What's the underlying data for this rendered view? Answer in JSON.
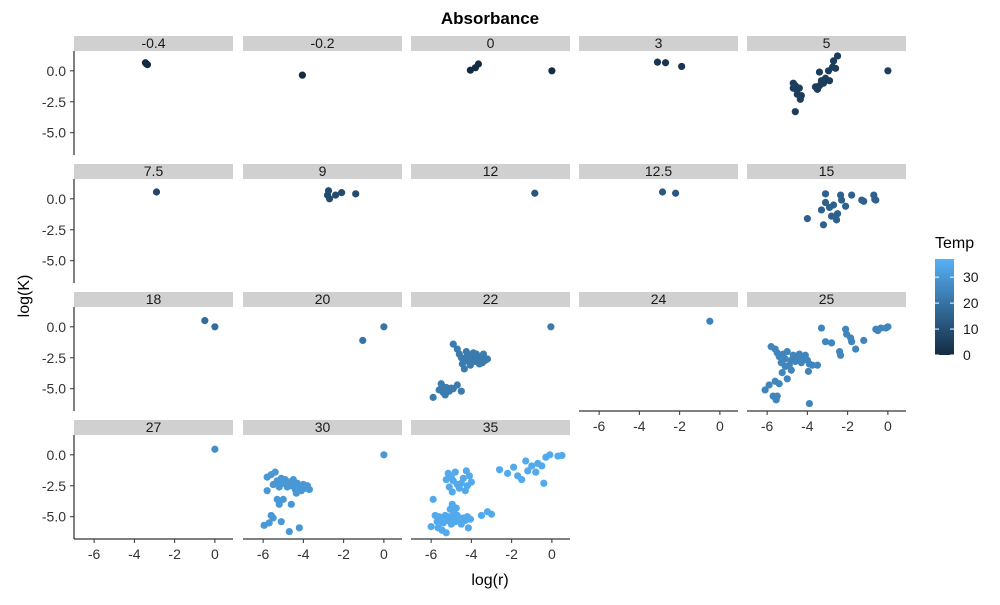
{
  "chart_data": {
    "type": "scatter",
    "faceted": true,
    "title": "Absorbance",
    "xlabel": "log(r)",
    "ylabel": "log(K)",
    "xlim": [
      -7.0,
      0.9
    ],
    "ylim": [
      -6.8,
      1.6
    ],
    "x_ticks": [
      -6,
      -4,
      -2,
      0
    ],
    "x_tick_labels": [
      "-6",
      "-4",
      "-2",
      "0"
    ],
    "y_ticks": [
      0,
      -2.5,
      -5
    ],
    "y_tick_labels": [
      "0.0",
      "-2.5",
      "-5.0"
    ],
    "grid": false,
    "legend": {
      "title": "Temp",
      "placement": "right",
      "min": 0,
      "max": 37,
      "ticks": [
        0,
        10,
        20,
        30
      ],
      "tick_labels": [
        "0",
        "10",
        "20",
        "30"
      ],
      "color_low": "#132B43",
      "color_high": "#56B1F7"
    },
    "facets": [
      {
        "label": "-0.4",
        "temp": -0.4,
        "points": [
          [
            -3.45,
            0.65
          ],
          [
            -3.4,
            0.55
          ],
          [
            -3.35,
            0.5
          ]
        ]
      },
      {
        "label": "-0.2",
        "temp": -0.2,
        "points": [
          [
            -4.05,
            -0.35
          ]
        ]
      },
      {
        "label": "0",
        "temp": 0,
        "points": [
          [
            -4.05,
            0.05
          ],
          [
            -3.8,
            0.25
          ],
          [
            -3.65,
            0.55
          ],
          [
            0.0,
            0.0
          ]
        ]
      },
      {
        "label": "3",
        "temp": 3,
        "points": [
          [
            -3.1,
            0.7
          ],
          [
            -2.7,
            0.65
          ],
          [
            -1.9,
            0.35
          ]
        ]
      },
      {
        "label": "5",
        "temp": 5,
        "points": [
          [
            -4.7,
            -1.0
          ],
          [
            -4.6,
            -1.2
          ],
          [
            -4.55,
            -1.5
          ],
          [
            -4.4,
            -1.4
          ],
          [
            -4.5,
            -1.9
          ],
          [
            -4.3,
            -2.0
          ],
          [
            -4.35,
            -2.3
          ],
          [
            -4.6,
            -3.3
          ],
          [
            -3.5,
            -1.5
          ],
          [
            -3.4,
            -1.2
          ],
          [
            -3.3,
            -0.8
          ],
          [
            -3.2,
            -1.0
          ],
          [
            -3.1,
            -0.6
          ],
          [
            -2.9,
            -0.8
          ],
          [
            -2.95,
            0.0
          ],
          [
            -2.75,
            0.3
          ],
          [
            -2.7,
            0.8
          ],
          [
            -2.6,
            0.2
          ],
          [
            -2.5,
            1.2
          ],
          [
            -3.4,
            -0.1
          ],
          [
            -3.6,
            -1.3
          ],
          [
            -4.7,
            -1.4
          ],
          [
            0.0,
            0.0
          ]
        ]
      },
      {
        "label": "7.5",
        "temp": 7.5,
        "points": [
          [
            -2.9,
            0.55
          ]
        ]
      },
      {
        "label": "9",
        "temp": 9,
        "points": [
          [
            -2.75,
            0.65
          ],
          [
            -2.8,
            0.3
          ],
          [
            -2.7,
            0.0
          ],
          [
            -2.4,
            0.3
          ],
          [
            -2.1,
            0.5
          ],
          [
            -1.4,
            0.4
          ]
        ]
      },
      {
        "label": "12",
        "temp": 12,
        "points": [
          [
            -0.85,
            0.45
          ]
        ]
      },
      {
        "label": "12.5",
        "temp": 12.5,
        "points": [
          [
            -2.85,
            0.55
          ],
          [
            -2.2,
            0.45
          ]
        ]
      },
      {
        "label": "15",
        "temp": 15,
        "points": [
          [
            -4.0,
            -1.6
          ],
          [
            -3.3,
            -0.9
          ],
          [
            -3.2,
            -2.1
          ],
          [
            -3.1,
            -0.3
          ],
          [
            -2.9,
            -0.7
          ],
          [
            -2.8,
            -1.4
          ],
          [
            -2.7,
            -0.5
          ],
          [
            -2.55,
            -1.7
          ],
          [
            -2.5,
            -1.2
          ],
          [
            -2.3,
            -0.1
          ],
          [
            -2.1,
            -0.6
          ],
          [
            -1.8,
            0.3
          ],
          [
            -1.3,
            -0.1
          ],
          [
            -1.2,
            -0.2
          ],
          [
            -0.7,
            0.3
          ],
          [
            -0.6,
            -0.1
          ],
          [
            -0.65,
            -0.05
          ],
          [
            -3.1,
            0.4
          ],
          [
            -2.35,
            0.3
          ]
        ]
      },
      {
        "label": "18",
        "temp": 18,
        "points": [
          [
            -0.5,
            0.5
          ],
          [
            0.0,
            0.0
          ]
        ]
      },
      {
        "label": "20",
        "temp": 20,
        "points": [
          [
            -1.05,
            -1.1
          ],
          [
            0.0,
            0.0
          ]
        ]
      },
      {
        "label": "22",
        "temp": 22,
        "points": [
          [
            -5.9,
            -5.7
          ],
          [
            -5.6,
            -5.1
          ],
          [
            -5.5,
            -4.6
          ],
          [
            -5.4,
            -5.3
          ],
          [
            -5.25,
            -4.9
          ],
          [
            -5.1,
            -5.2
          ],
          [
            -4.9,
            -5.0
          ],
          [
            -4.7,
            -4.7
          ],
          [
            -4.5,
            -5.2
          ],
          [
            -5.3,
            -5.5
          ],
          [
            -5.45,
            -4.8
          ],
          [
            -5.0,
            -4.95
          ],
          [
            -4.9,
            -1.4
          ],
          [
            -4.7,
            -1.8
          ],
          [
            -4.6,
            -2.2
          ],
          [
            -4.5,
            -2.5
          ],
          [
            -4.45,
            -3.0
          ],
          [
            -4.35,
            -3.4
          ],
          [
            -4.3,
            -2.7
          ],
          [
            -4.2,
            -2.3
          ],
          [
            -4.1,
            -2.9
          ],
          [
            -4.0,
            -2.6
          ],
          [
            -3.9,
            -2.1
          ],
          [
            -3.8,
            -2.8
          ],
          [
            -3.7,
            -2.4
          ],
          [
            -3.6,
            -3.0
          ],
          [
            -3.5,
            -2.5
          ],
          [
            -3.4,
            -2.2
          ],
          [
            -3.3,
            -2.7
          ],
          [
            -3.2,
            -2.6
          ],
          [
            -4.25,
            -2.0
          ],
          [
            -4.05,
            -3.1
          ],
          [
            -3.95,
            -2.3
          ],
          [
            -3.75,
            -2.2
          ],
          [
            -3.55,
            -2.7
          ],
          [
            -3.45,
            -2.9
          ],
          [
            -0.05,
            0.0
          ]
        ]
      },
      {
        "label": "24",
        "temp": 24,
        "points": [
          [
            -0.5,
            0.45
          ]
        ]
      },
      {
        "label": "25",
        "temp": 25,
        "points": [
          [
            -6.1,
            -5.1
          ],
          [
            -5.9,
            -4.7
          ],
          [
            -5.7,
            -5.6
          ],
          [
            -5.55,
            -5.9
          ],
          [
            -5.6,
            -4.4
          ],
          [
            -5.4,
            -4.6
          ],
          [
            -5.5,
            -5.6
          ],
          [
            -5.25,
            -3.7
          ],
          [
            -5.1,
            -3.2
          ],
          [
            -5.0,
            -4.2
          ],
          [
            -4.8,
            -3.5
          ],
          [
            -3.95,
            -3.6
          ],
          [
            -3.9,
            -6.2
          ],
          [
            -5.8,
            -1.6
          ],
          [
            -5.6,
            -1.8
          ],
          [
            -5.5,
            -2.1
          ],
          [
            -5.4,
            -2.4
          ],
          [
            -5.3,
            -2.9
          ],
          [
            -5.2,
            -2.2
          ],
          [
            -5.1,
            -2.6
          ],
          [
            -5.0,
            -2.0
          ],
          [
            -4.9,
            -3.1
          ],
          [
            -4.8,
            -2.7
          ],
          [
            -4.7,
            -2.3
          ],
          [
            -4.6,
            -2.8
          ],
          [
            -4.5,
            -2.5
          ],
          [
            -4.4,
            -2.2
          ],
          [
            -4.3,
            -2.9
          ],
          [
            -4.2,
            -2.6
          ],
          [
            -4.1,
            -2.3
          ],
          [
            -4.0,
            -2.7
          ],
          [
            -3.9,
            -3.0
          ],
          [
            -3.75,
            -3.1
          ],
          [
            -3.5,
            -3.1
          ],
          [
            -3.3,
            -0.1
          ],
          [
            -3.1,
            -1.2
          ],
          [
            -2.8,
            -1.3
          ],
          [
            -2.4,
            -2.0
          ],
          [
            -2.35,
            -2.3
          ],
          [
            -2.1,
            -0.2
          ],
          [
            -2.05,
            -0.6
          ],
          [
            -1.85,
            -0.9
          ],
          [
            -1.8,
            -1.2
          ],
          [
            -1.6,
            -1.8
          ],
          [
            -1.2,
            -1.1
          ],
          [
            -0.6,
            -0.2
          ],
          [
            -0.35,
            -0.1
          ],
          [
            -0.1,
            -0.1
          ],
          [
            0.0,
            0.0
          ],
          [
            -0.5,
            -0.3
          ]
        ]
      },
      {
        "label": "27",
        "temp": 27,
        "points": [
          [
            0.0,
            0.45
          ]
        ]
      },
      {
        "label": "30",
        "temp": 30,
        "points": [
          [
            -5.95,
            -5.7
          ],
          [
            -5.7,
            -5.5
          ],
          [
            -5.6,
            -4.9
          ],
          [
            -5.5,
            -5.1
          ],
          [
            -5.3,
            -3.6
          ],
          [
            -5.2,
            -4.0
          ],
          [
            -5.1,
            -5.4
          ],
          [
            -5.0,
            -3.6
          ],
          [
            -4.7,
            -6.2
          ],
          [
            -4.6,
            -4.0
          ],
          [
            -4.2,
            -5.9
          ],
          [
            -5.8,
            -1.8
          ],
          [
            -5.6,
            -1.6
          ],
          [
            -5.5,
            -2.4
          ],
          [
            -5.4,
            -1.4
          ],
          [
            -5.3,
            -2.1
          ],
          [
            -5.2,
            -2.6
          ],
          [
            -5.1,
            -1.9
          ],
          [
            -5.0,
            -2.3
          ],
          [
            -4.9,
            -2.0
          ],
          [
            -4.8,
            -2.6
          ],
          [
            -4.7,
            -2.2
          ],
          [
            -4.6,
            -2.5
          ],
          [
            -4.5,
            -2.0
          ],
          [
            -4.4,
            -2.8
          ],
          [
            -4.3,
            -2.3
          ],
          [
            -4.2,
            -2.6
          ],
          [
            -4.1,
            -2.9
          ],
          [
            -4.0,
            -2.4
          ],
          [
            -3.9,
            -2.7
          ],
          [
            -3.8,
            -2.5
          ],
          [
            -3.7,
            -2.8
          ],
          [
            -5.8,
            -2.9
          ],
          [
            -4.35,
            -3.1
          ],
          [
            0.0,
            0.0
          ]
        ]
      },
      {
        "label": "35",
        "temp": 35,
        "points": [
          [
            -6.0,
            -5.8
          ],
          [
            -5.9,
            -3.6
          ],
          [
            -5.8,
            -4.9
          ],
          [
            -5.7,
            -5.4
          ],
          [
            -5.6,
            -5.0
          ],
          [
            -5.5,
            -5.2
          ],
          [
            -5.4,
            -5.5
          ],
          [
            -5.3,
            -4.9
          ],
          [
            -5.2,
            -5.3
          ],
          [
            -5.1,
            -5.0
          ],
          [
            -5.0,
            -5.6
          ],
          [
            -4.9,
            -5.1
          ],
          [
            -4.8,
            -5.4
          ],
          [
            -4.7,
            -4.9
          ],
          [
            -4.6,
            -5.2
          ],
          [
            -4.5,
            -5.6
          ],
          [
            -4.4,
            -5.1
          ],
          [
            -4.3,
            -5.3
          ],
          [
            -4.2,
            -5.0
          ],
          [
            -4.15,
            -5.9
          ],
          [
            -4.05,
            -5.2
          ],
          [
            -5.65,
            -5.9
          ],
          [
            -5.45,
            -6.1
          ],
          [
            -5.25,
            -6.3
          ],
          [
            -5.05,
            -4.4
          ],
          [
            -4.95,
            -4.0
          ],
          [
            -4.85,
            -4.7
          ],
          [
            -4.75,
            -4.3
          ],
          [
            -5.15,
            -1.5
          ],
          [
            -5.0,
            -1.8
          ],
          [
            -4.9,
            -2.1
          ],
          [
            -4.8,
            -1.4
          ],
          [
            -4.7,
            -2.4
          ],
          [
            -4.6,
            -2.7
          ],
          [
            -4.5,
            -2.3
          ],
          [
            -4.4,
            -1.9
          ],
          [
            -4.3,
            -2.9
          ],
          [
            -4.2,
            -2.5
          ],
          [
            -4.1,
            -1.7
          ],
          [
            -4.0,
            -2.2
          ],
          [
            -5.25,
            -2.0
          ],
          [
            -5.1,
            -2.6
          ],
          [
            -4.95,
            -3.0
          ],
          [
            -4.25,
            -1.3
          ],
          [
            -3.5,
            -4.9
          ],
          [
            -3.2,
            -4.6
          ],
          [
            -3.0,
            -4.8
          ],
          [
            -2.6,
            -1.2
          ],
          [
            -2.2,
            -1.5
          ],
          [
            -1.9,
            -1.0
          ],
          [
            -1.7,
            -1.7
          ],
          [
            -1.5,
            -2.0
          ],
          [
            -1.3,
            -0.5
          ],
          [
            -1.2,
            -1.3
          ],
          [
            -1.0,
            -0.9
          ],
          [
            -0.8,
            -1.4
          ],
          [
            -0.7,
            -0.7
          ],
          [
            -0.5,
            -0.9
          ],
          [
            -0.4,
            -2.3
          ],
          [
            -0.3,
            -0.2
          ],
          [
            -0.1,
            0.0
          ],
          [
            0.3,
            -0.1
          ],
          [
            0.5,
            -0.05
          ]
        ]
      }
    ]
  }
}
